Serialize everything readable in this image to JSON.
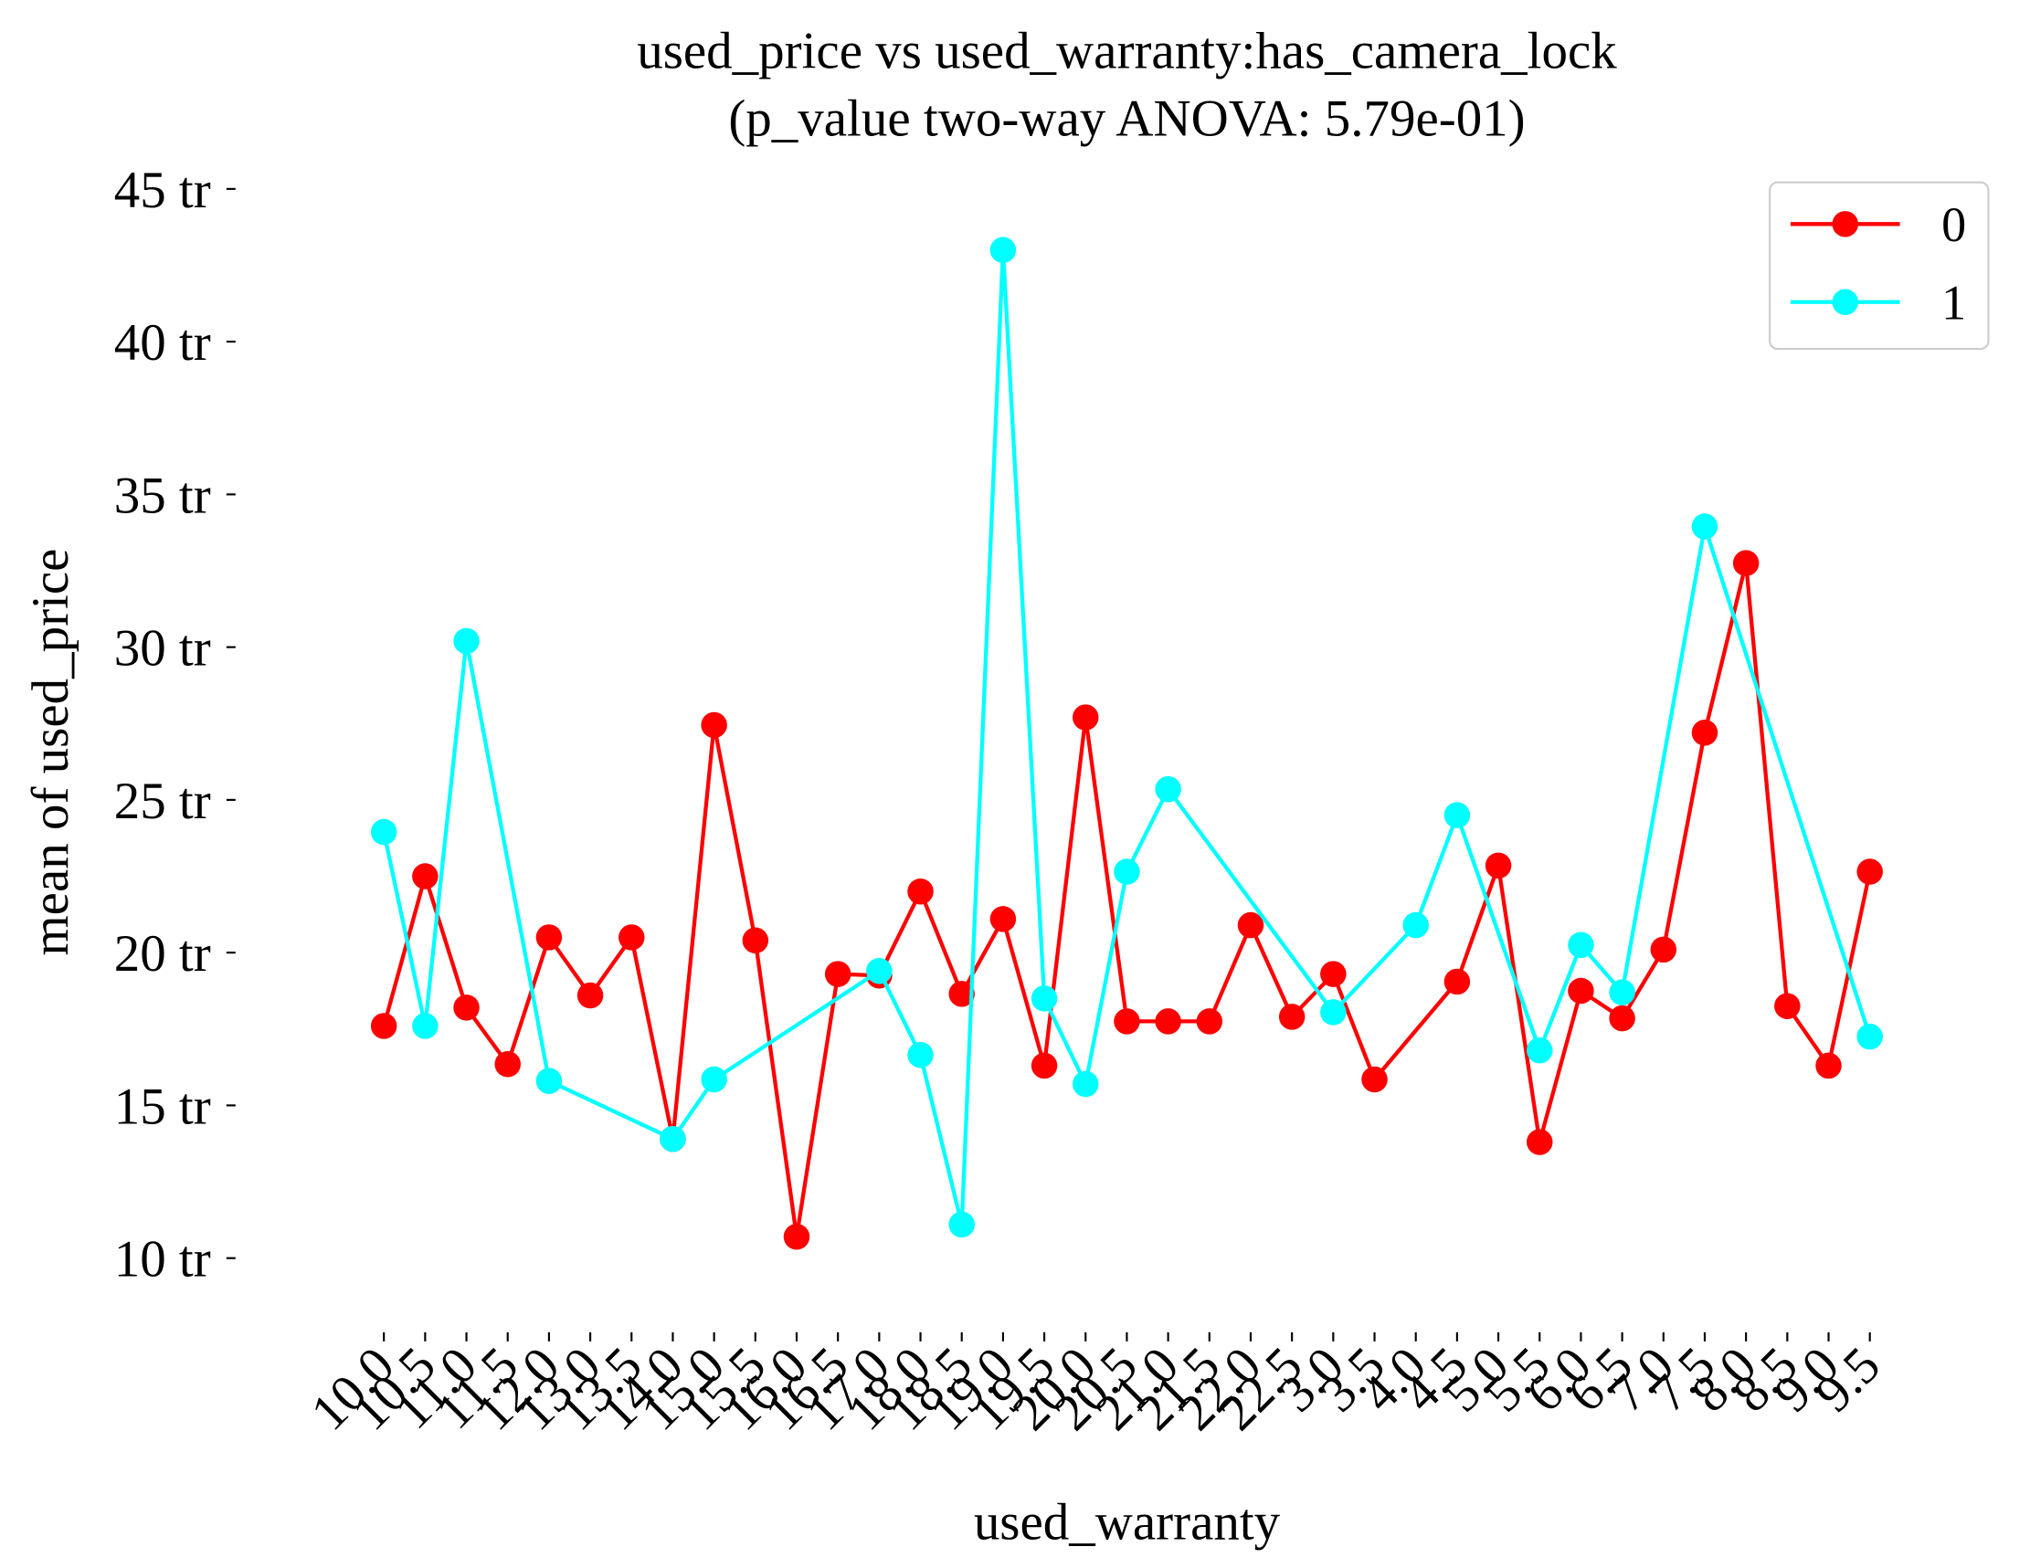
{
  "chart_data": {
    "type": "line",
    "title": "used_price vs used_warranty:has_camera_lock",
    "subtitle": "(p_value two-way ANOVA: 5.79e-01)",
    "x_label": "used_warranty",
    "y_label": "mean of used_price",
    "categories": [
      "10.0",
      "10.5",
      "11.0",
      "11.5",
      "12.0",
      "13.0",
      "13.5",
      "14.0",
      "15.0",
      "15.5",
      "16.0",
      "16.5",
      "17.0",
      "18.0",
      "18.5",
      "19.0",
      "19.5",
      "20.0",
      "20.5",
      "21.0",
      "21.5",
      "22.0",
      "22.5",
      "3.0",
      "3.5",
      "4.0",
      "4.5",
      "5.0",
      "5.5",
      "6.0",
      "6.5",
      "7.0",
      "7.5",
      "8.0",
      "8.5",
      "9.0",
      "9.5"
    ],
    "series": [
      {
        "name": "0",
        "color": "#ff0000",
        "x": [
          "10.0",
          "10.5",
          "11.0",
          "11.5",
          "12.0",
          "13.0",
          "13.5",
          "14.0",
          "15.0",
          "15.5",
          "16.0",
          "16.5",
          "17.0",
          "18.0",
          "18.5",
          "19.0",
          "19.5",
          "20.0",
          "20.5",
          "21.0",
          "21.5",
          "22.0",
          "22.5",
          "3.0",
          "3.5",
          "4.5",
          "5.0",
          "5.5",
          "6.0",
          "6.5",
          "7.0",
          "7.5",
          "8.0",
          "8.5",
          "9.0",
          "9.5"
        ],
        "values": [
          17.6,
          22.5,
          18.2,
          16.35,
          20.5,
          18.6,
          20.5,
          13.9,
          27.45,
          20.4,
          10.7,
          19.3,
          19.25,
          22.0,
          18.65,
          21.1,
          16.3,
          27.7,
          17.75,
          17.75,
          17.75,
          20.9,
          17.9,
          19.3,
          15.85,
          19.05,
          22.85,
          13.8,
          18.75,
          17.85,
          20.1,
          27.2,
          32.75,
          18.25,
          16.3,
          22.65
        ]
      },
      {
        "name": "1",
        "color": "#00ffff",
        "x": [
          "10.0",
          "10.5",
          "11.0",
          "12.0",
          "14.0",
          "15.0",
          "17.0",
          "18.0",
          "18.5",
          "19.0",
          "19.5",
          "20.0",
          "20.5",
          "21.0",
          "3.0",
          "4.0",
          "4.5",
          "5.5",
          "6.0",
          "6.5",
          "7.5",
          "9.5"
        ],
        "values": [
          23.95,
          17.6,
          30.2,
          15.8,
          13.9,
          15.85,
          19.4,
          16.65,
          11.1,
          43.0,
          18.5,
          15.7,
          22.65,
          25.35,
          18.05,
          20.9,
          24.5,
          16.8,
          20.25,
          18.7,
          33.95,
          17.25
        ]
      }
    ],
    "ylim": [
      7.5,
      47.5
    ],
    "yticks": [
      {
        "value": 10,
        "label": "10 tr"
      },
      {
        "value": 15,
        "label": "15 tr"
      },
      {
        "value": 20,
        "label": "20 tr"
      },
      {
        "value": 25,
        "label": "25 tr"
      },
      {
        "value": 30,
        "label": "30 tr"
      },
      {
        "value": 35,
        "label": "35 tr"
      },
      {
        "value": 40,
        "label": "40 tr"
      },
      {
        "value": 45,
        "label": "45 tr"
      }
    ],
    "legend": "upper right"
  }
}
